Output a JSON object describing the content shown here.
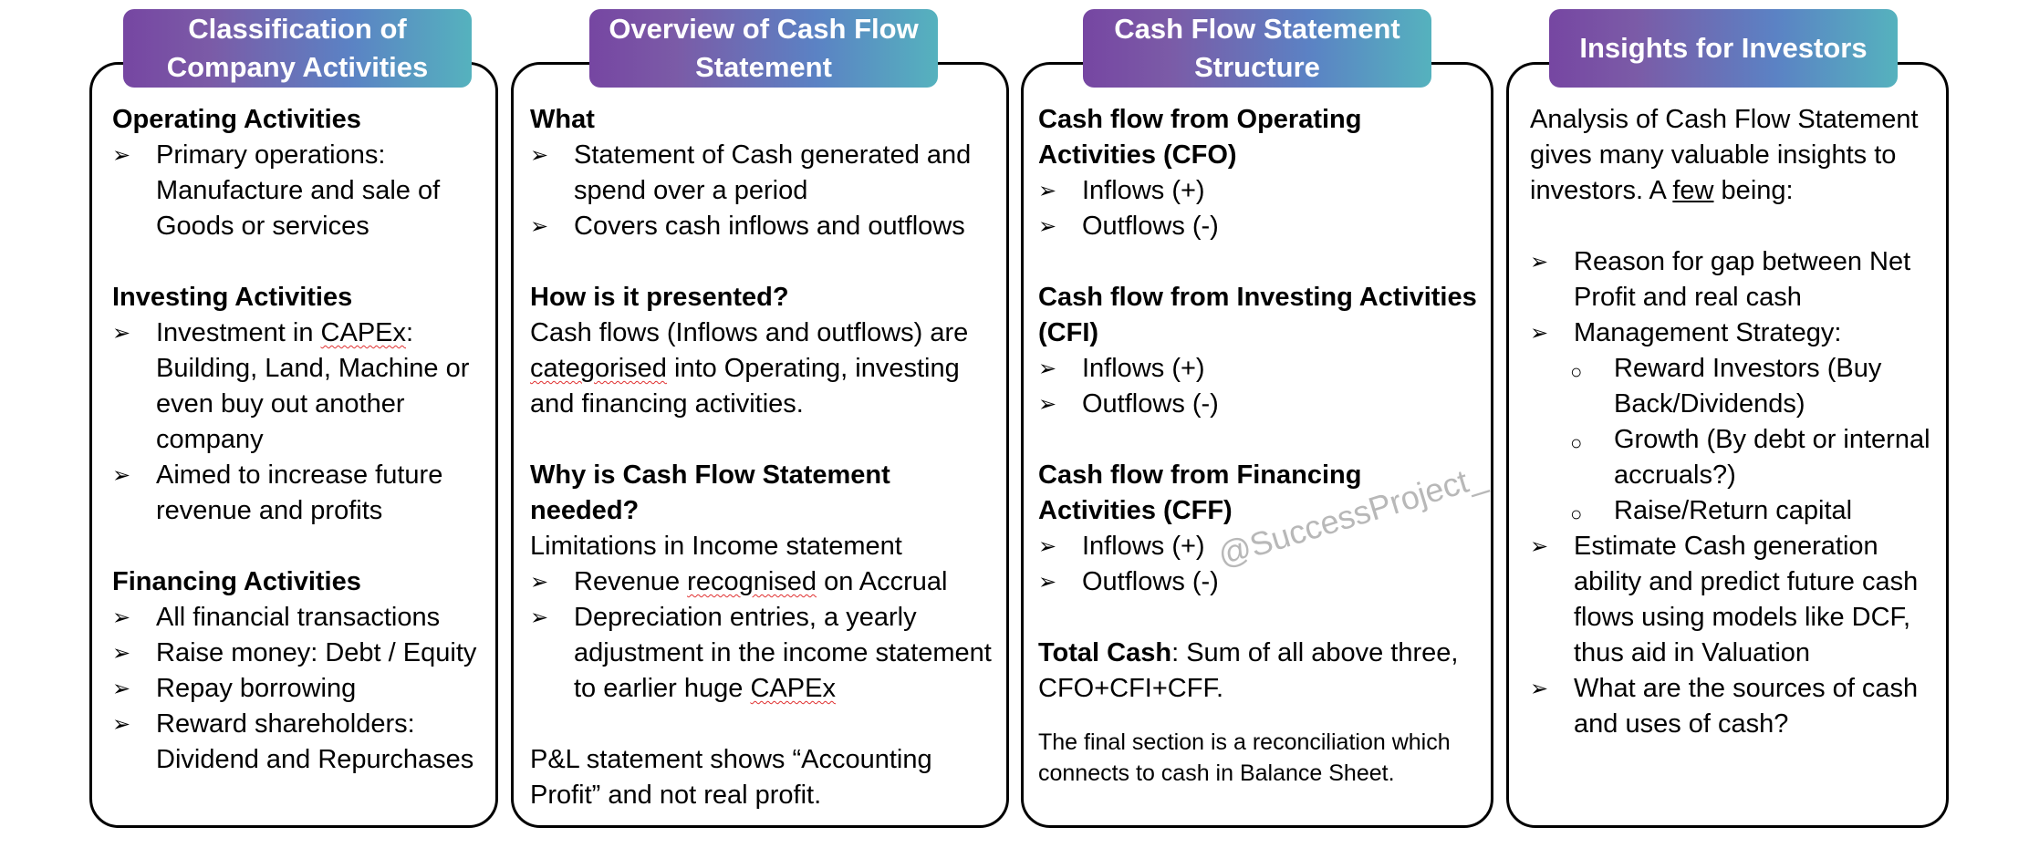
{
  "columns": [
    {
      "title": "Classification of Company Activities",
      "sections": [
        {
          "heading": "Operating Activities",
          "bullets": [
            "Primary operations: Manufacture and sale of Goods or services"
          ]
        },
        {
          "heading": "Investing Activities",
          "bullets": [
            "Investment in CAPEx: Building, Land, Machine or even buy out another company",
            "Aimed to increase future revenue and profits"
          ]
        },
        {
          "heading": "Financing Activities",
          "bullets": [
            "All financial transactions",
            "Raise money: Debt / Equity",
            "Repay borrowing",
            "Reward shareholders: Dividend and Repurchases"
          ]
        }
      ]
    },
    {
      "title": "Overview of Cash Flow Statement",
      "what_heading": "What",
      "what_bullets": [
        "Statement of Cash generated and spend over a period",
        "Covers cash inflows and outflows"
      ],
      "how_heading": "How is it presented?",
      "how_text": "Cash flows (Inflows and outflows) are categorised into Operating, investing and financing activities.",
      "why_heading": "Why is Cash Flow Statement needed?",
      "why_text": "Limitations in Income statement",
      "why_bullets": [
        "Revenue recognised on Accrual",
        "Depreciation entries, a yearly adjustment in the income statement to earlier huge CAPEx"
      ],
      "pl_text": "P&L statement shows “Accounting Profit” and not real profit."
    },
    {
      "title": "Cash Flow Statement Structure",
      "sections": [
        {
          "heading": "Cash flow from Operating Activities (CFO)",
          "bullets": [
            "Inflows (+)",
            "Outflows (-)"
          ]
        },
        {
          "heading": "Cash flow from Investing Activities (CFI)",
          "bullets": [
            "Inflows (+)",
            "Outflows (-)"
          ]
        },
        {
          "heading": "Cash flow from Financing Activities (CFF)",
          "bullets": [
            "Inflows (+)",
            "Outflows (-)"
          ]
        }
      ],
      "total_label": "Total Cash",
      "total_text": ": Sum of all above three, CFO+CFI+CFF.",
      "final_note": "The final section is a reconciliation which connects to cash in Balance Sheet."
    },
    {
      "title": "Insights for Investors",
      "intro": "Analysis of Cash Flow Statement gives many valuable insights to investors. A few being:",
      "bullets": [
        "Reason for gap between Net Profit and real cash",
        "Management Strategy:",
        "Estimate Cash generation ability and predict future cash flows using models like DCF, thus aid in Valuation",
        "What are the sources of cash and uses of cash?"
      ],
      "sub_bullets": [
        "Reward Investors (Buy Back/Dividends)",
        "Growth (By debt or internal accruals?)",
        "Raise/Return capital"
      ]
    }
  ],
  "watermark": "@SuccessProject_",
  "icons": {
    "bullet": "arrowhead-bullet-icon",
    "sub_bullet": "circle-bullet-icon"
  }
}
